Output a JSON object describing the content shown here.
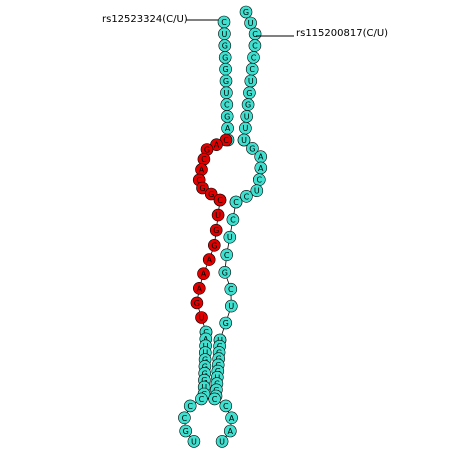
{
  "diagram": {
    "type": "rna-secondary-structure",
    "annotations": [
      {
        "id": "left",
        "text": "rs12523324(C/U)"
      },
      {
        "id": "right",
        "text": "rs115200817(C/U)"
      }
    ],
    "colors": {
      "stem": "#40e0d0",
      "highlight": "#e00000",
      "outline": "#000000"
    },
    "structure": {
      "top_stem_left": [
        "C",
        "U",
        "G",
        "G",
        "G",
        "G",
        "U",
        "C",
        "G",
        "A",
        "G"
      ],
      "top_stem_right": [
        "G",
        "U",
        "C",
        "C",
        "C",
        "C",
        "U",
        "G",
        "G",
        "U",
        "U",
        "C"
      ],
      "upper_loop_red": [
        "C",
        "A",
        "G",
        "C",
        "A",
        "C",
        "G",
        "G",
        "U"
      ],
      "upper_loop_cyan_right": [
        "U",
        "G",
        "A",
        "A",
        "C",
        "U",
        "C",
        "A"
      ],
      "mid_stem_left_red": [
        "C",
        "U",
        "G",
        "G",
        "A",
        "A",
        "A",
        "G",
        "U",
        "C"
      ],
      "mid_stem_right": [
        "C",
        "C",
        "U",
        "C",
        "G",
        "C",
        "U",
        "G",
        "C"
      ],
      "lower_stem_left": [
        "C",
        "A",
        "U",
        "U",
        "G",
        "G",
        "G",
        "G",
        "U",
        "C"
      ],
      "lower_stem_right": [
        "U",
        "C",
        "G",
        "G",
        "C",
        "G",
        "U",
        "C",
        "G",
        "C"
      ],
      "bottom_loop": [
        "U",
        "G",
        "C",
        "C",
        "C",
        "C",
        "C",
        "A",
        "A",
        "U"
      ]
    }
  }
}
